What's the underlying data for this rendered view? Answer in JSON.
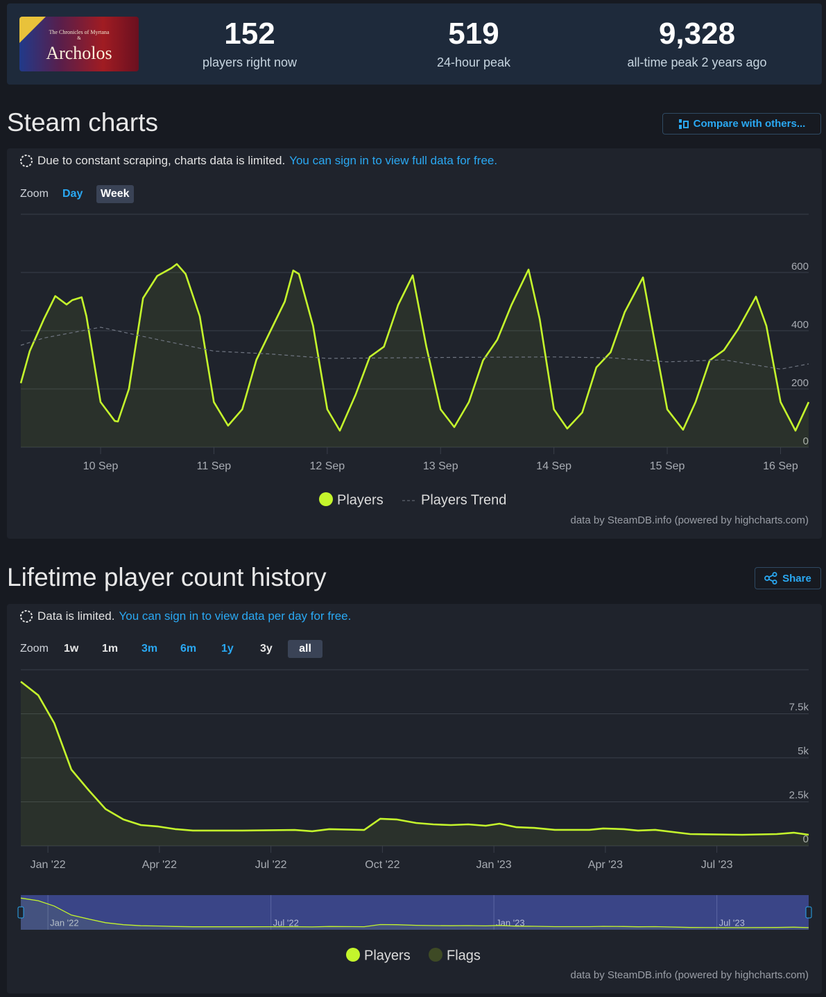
{
  "header": {
    "game_logo": {
      "subtitle": "The Chronicles of Myrtana",
      "ampersand": "&",
      "title": "Archolos"
    },
    "stats": [
      {
        "value": "152",
        "label": "players right now"
      },
      {
        "value": "519",
        "label": "24-hour peak"
      },
      {
        "value": "9,328",
        "label": "all-time peak 2 years ago"
      }
    ]
  },
  "sections": [
    {
      "title": "Steam charts",
      "button": "Compare with others...",
      "notice": "Due to constant scraping, charts data is limited.",
      "notice_link": "You can sign in to view full data for free.",
      "zoom_label": "Zoom",
      "zoom_buttons": [
        "Day",
        "Week"
      ],
      "credits": "data by SteamDB.info (powered by highcharts.com)"
    },
    {
      "title": "Lifetime player count history",
      "button": "Share",
      "notice": "Data is limited.",
      "notice_link": "You can sign in to view data per day for free.",
      "zoom_label": "Zoom",
      "zoom_buttons": [
        "1w",
        "1m",
        "3m",
        "6m",
        "1y",
        "3y",
        "all"
      ],
      "credits": "data by SteamDB.info (powered by highcharts.com)"
    }
  ],
  "chart_data": [
    {
      "type": "line",
      "grid": true,
      "legend": "bottom",
      "xlim": [
        9.296,
        16.248
      ],
      "xticks": [
        {
          "value": 10,
          "label": "10 Sep"
        },
        {
          "value": 11,
          "label": "11 Sep"
        },
        {
          "value": 12,
          "label": "12 Sep"
        },
        {
          "value": 13,
          "label": "13 Sep"
        },
        {
          "value": 14,
          "label": "14 Sep"
        },
        {
          "value": 15,
          "label": "15 Sep"
        },
        {
          "value": 16,
          "label": "16 Sep"
        }
      ],
      "ylim": [
        0,
        800
      ],
      "yticks": [
        0,
        200,
        400,
        600
      ],
      "series": [
        {
          "name": "Players",
          "color": "#c4f52c",
          "area": true,
          "x": [
            9.296,
            9.375,
            9.5,
            9.6,
            9.7,
            9.75,
            9.833,
            9.875,
            10.0,
            10.125,
            10.153,
            10.25,
            10.375,
            10.5,
            10.625,
            10.673,
            10.75,
            10.875,
            11.0,
            11.125,
            11.25,
            11.375,
            11.5,
            11.625,
            11.7,
            11.75,
            11.875,
            12.0,
            12.111,
            12.25,
            12.375,
            12.5,
            12.625,
            12.754,
            12.875,
            13.0,
            13.121,
            13.25,
            13.375,
            13.5,
            13.625,
            13.776,
            13.875,
            14.0,
            14.118,
            14.25,
            14.375,
            14.5,
            14.625,
            14.786,
            14.875,
            15.0,
            15.14,
            15.25,
            15.375,
            15.5,
            15.625,
            15.783,
            15.875,
            16.0,
            16.132,
            16.248
          ],
          "values": [
            220,
            330,
            440,
            519,
            490,
            505,
            515,
            450,
            155,
            90,
            88,
            200,
            512,
            588,
            615,
            629,
            595,
            450,
            155,
            74,
            130,
            300,
            400,
            500,
            607,
            595,
            417,
            130,
            57,
            180,
            310,
            345,
            488,
            590,
            345,
            130,
            69,
            155,
            298,
            369,
            488,
            610,
            440,
            130,
            64,
            119,
            274,
            326,
            464,
            583,
            393,
            130,
            60,
            155,
            298,
            333,
            405,
            517,
            417,
            155,
            57,
            155
          ]
        },
        {
          "name": "Players Trend",
          "color": "#6f7581",
          "dash_style": "dash",
          "x": [
            9.296,
            9.5,
            10.0,
            10.5,
            11.0,
            11.5,
            12.0,
            13.0,
            14.0,
            14.5,
            15.0,
            15.5,
            16.0,
            16.248
          ],
          "values": [
            350,
            375,
            412,
            370,
            330,
            320,
            305,
            308,
            310,
            307,
            293,
            300,
            268,
            286
          ]
        }
      ]
    },
    {
      "type": "line",
      "grid": true,
      "legend": "bottom",
      "navigator": true,
      "xlim": [
        -0.73,
        20.47
      ],
      "xticks": [
        {
          "value": 0,
          "label": "Jan '22"
        },
        {
          "value": 3,
          "label": "Apr '22"
        },
        {
          "value": 6,
          "label": "Jul '22"
        },
        {
          "value": 9,
          "label": "Oct '22"
        },
        {
          "value": 12,
          "label": "Jan '23"
        },
        {
          "value": 15,
          "label": "Apr '23"
        },
        {
          "value": 18,
          "label": "Jul '23"
        }
      ],
      "ylim": [
        0,
        10000
      ],
      "yticks": [
        0,
        {
          "value": 2500,
          "label": "2.5k"
        },
        {
          "value": 5000,
          "label": "5k"
        },
        {
          "value": 7500,
          "label": "7.5k"
        }
      ],
      "series": [
        {
          "name": "Players",
          "color": "#c4f52c",
          "area": true,
          "x": [
            -0.73,
            -0.26,
            0.17,
            0.63,
            1.1,
            1.55,
            2.03,
            2.5,
            2.97,
            3.43,
            3.9,
            5.24,
            6.64,
            7.11,
            7.57,
            8.51,
            8.94,
            9.38,
            9.91,
            10.37,
            10.84,
            11.31,
            11.78,
            12.15,
            12.61,
            13.08,
            13.64,
            14.57,
            14.94,
            15.5,
            15.88,
            16.34,
            17.28,
            18.68,
            19.61,
            20.07,
            20.47
          ],
          "values": [
            9328,
            8550,
            6970,
            4330,
            3150,
            2090,
            1500,
            1180,
            1100,
            950,
            870,
            870,
            900,
            830,
            950,
            900,
            1540,
            1500,
            1300,
            1220,
            1180,
            1220,
            1140,
            1260,
            1060,
            1020,
            910,
            910,
            990,
            950,
            870,
            910,
            670,
            630,
            670,
            750,
            630
          ]
        },
        {
          "name": "Flags",
          "color": "#3e4a25",
          "x": [],
          "values": []
        }
      ]
    }
  ]
}
